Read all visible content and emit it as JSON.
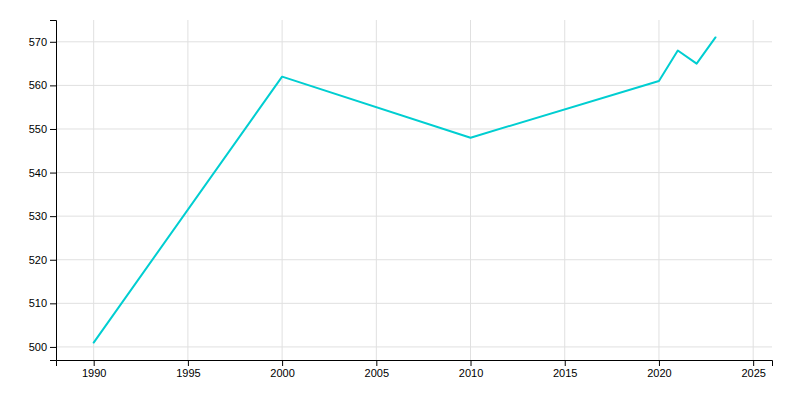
{
  "chart_data": {
    "type": "line",
    "x": [
      1990,
      2000,
      2010,
      2020,
      2021,
      2022,
      2023
    ],
    "values": [
      501,
      562,
      548,
      561,
      568,
      565,
      571
    ],
    "color": "#00CED1",
    "xlim": [
      1988,
      2026
    ],
    "ylim": [
      497,
      575
    ],
    "xticks": [
      1990,
      1995,
      2000,
      2005,
      2010,
      2015,
      2020,
      2025
    ],
    "yticks": [
      500,
      510,
      520,
      530,
      540,
      550,
      560,
      570
    ],
    "grid": true
  }
}
